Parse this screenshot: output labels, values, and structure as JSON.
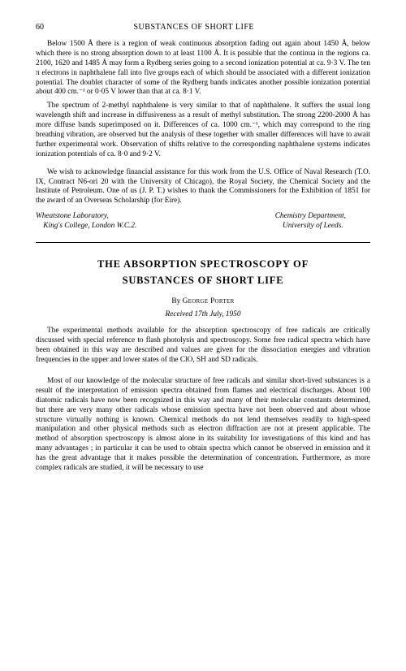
{
  "page_number": "60",
  "running_head": "SUBSTANCES OF SHORT LIFE",
  "para1": "Below 1500 Å there is a region of weak continuous absorption fading out again about 1450 Å, below which there is no strong absorption down to at least 1100 Å. It is possible that the continua in the regions ca. 2100, 1620 and 1485 Å may form a Rydberg series going to a second ionization potential at ca. 9·3 V. The ten π electrons in naphthalene fall into five groups each of which should be associated with a different ionization potential. The doublet character of some of the Rydberg bands indicates another possible ionization potential about 400 cm.⁻¹ or 0·05 V lower than that at ca. 8·1 V.",
  "para2": "The spectrum of 2-methyl naphthalene is very similar to that of naphthalene. It suffers the usual long wavelength shift and increase in diffusiveness as a result of methyl substitution. The strong 2200-2000 Å has more diffuse bands superimposed on it. Differences of ca. 1000 cm.⁻¹, which may correspond to the ring breathing vibration, are observed but the analysis of these together with smaller differences will have to await further experimental work. Observation of shifts relative to the corresponding naphthalene systems indicates ionization potentials of ca. 8·0 and 9·2 V.",
  "ack": "We wish to acknowledge financial assistance for this work from the U.S. Office of Naval Research (T.O. IX, Contract N6-ori 20 with the University of Chicago), the Royal Society, the Chemical Society and the Institute of Petroleum. One of us (J. P. T.) wishes to thank the Commissioners for the Exhibition of 1851 for the award of an Overseas Scholarship (for Eire).",
  "affil_left_1": "Wheatstone Laboratory,",
  "affil_left_2": "    King's College, London W.C.2.",
  "affil_right_1": "Chemistry Department,",
  "affil_right_2": "    University of Leeds.",
  "title_line1": "THE ABSORPTION SPECTROSCOPY OF",
  "title_line2": "SUBSTANCES OF SHORT LIFE",
  "by_prefix": "By ",
  "author": "George Porter",
  "received": "Received 17th July, 1950",
  "abstract": "The experimental methods available for the absorption spectroscopy of free radicals are critically discussed with special reference to flash photolysis and spectroscopy. Some free radical spectra which have been obtained in this way are described and values are given for the dissociation energies and vibration frequencies in the upper and lower states of the ClO, SH and SD radicals.",
  "para3": "Most of our knowledge of the molecular structure of free radicals and similar short-lived substances is a result of the interpretation of emission spectra obtained from flames and electrical discharges. About 100 diatomic radicals have now been recognized in this way and many of their molecular constants determined, but there are very many other radicals whose emission spectra have not been observed and about whose structure virtually nothing is known. Chemical methods do not lend themselves readily to high-speed manipulation and other physical methods such as electron diffraction are not at present applicable. The method of absorption spectroscopy is almost alone in its suitability for investigations of this kind and has many advantages ; in particular it can be used to obtain spectra which cannot be observed in emission and it has the great advantage that it makes possible the determination of concentration. Furthermore, as more complex radicals are studied, it will be necessary to use"
}
